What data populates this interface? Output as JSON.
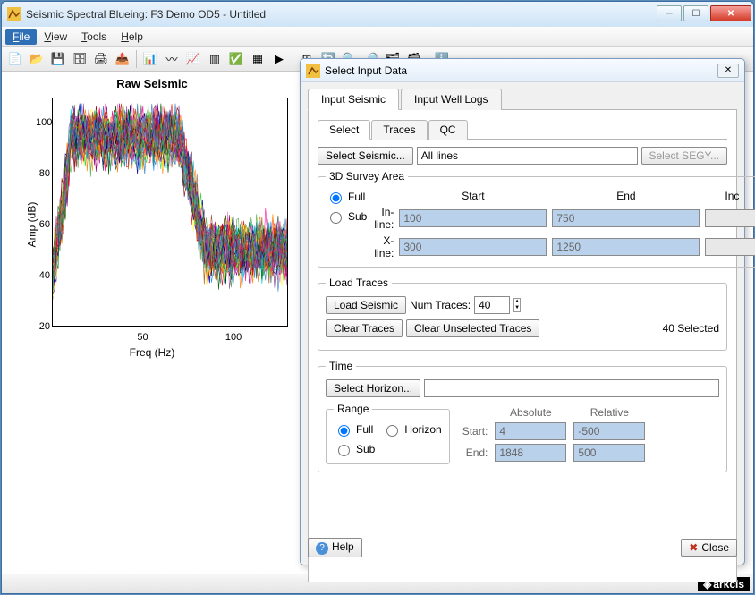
{
  "window": {
    "title": "Seismic Spectral Blueing: F3 Demo OD5 - Untitled"
  },
  "menu": {
    "file": "File",
    "view": "View",
    "tools": "Tools",
    "help": "Help"
  },
  "chart": {
    "title": "Raw Seismic",
    "xlabel": "Freq (Hz)",
    "ylabel": "Amp (dB)",
    "yticks": [
      20,
      40,
      60,
      80,
      100
    ],
    "ymin": 20,
    "ymax": 110,
    "xticks": [
      50,
      100
    ],
    "xmin": 0,
    "xmax": 130,
    "boxcolor": "#000000",
    "background": "#ffffff",
    "series_colors": [
      "#e41a1c",
      "#377eb8",
      "#4daf4a",
      "#984ea3",
      "#ff7f00",
      "#ffff33",
      "#a65628",
      "#f781bf",
      "#00ced1",
      "#1e90ff",
      "#ff1493",
      "#32cd32",
      "#8b008b",
      "#ff8c00",
      "#006400",
      "#8b0000",
      "#00008b",
      "#2f4f4f"
    ]
  },
  "dialog": {
    "title": "Select Input Data",
    "tabs": {
      "seismic": "Input Seismic",
      "well": "Input Well Logs"
    },
    "inner_tabs": {
      "select": "Select",
      "traces": "Traces",
      "qc": "QC"
    },
    "select_seismic_btn": "Select Seismic...",
    "lines_value": "All lines",
    "select_segy_btn": "Select SEGY...",
    "survey_legend": "3D Survey Area",
    "survey": {
      "full": "Full",
      "sub": "Sub",
      "hdr_start": "Start",
      "hdr_end": "End",
      "hdr_inc": "Inc",
      "inline_label": "In-line:",
      "inline_start": "100",
      "inline_end": "750",
      "inline_inc": "",
      "xline_label": "X-line:",
      "xline_start": "300",
      "xline_end": "1250",
      "xline_inc": ""
    },
    "load_legend": "Load Traces",
    "load_btn": "Load Seismic",
    "num_traces_label": "Num Traces:",
    "num_traces_value": "40",
    "clear_traces_btn": "Clear Traces",
    "clear_unselected_btn": "Clear Unselected Traces",
    "selected_text": "40 Selected",
    "time_legend": "Time",
    "select_horizon_btn": "Select Horizon...",
    "horizon_value": "",
    "range_legend": "Range",
    "range": {
      "full": "Full",
      "horizon": "Horizon",
      "sub": "Sub"
    },
    "abs_label": "Absolute",
    "rel_label": "Relative",
    "start_label": "Start:",
    "end_label": "End:",
    "abs_start": "4",
    "abs_end": "1848",
    "rel_start": "-500",
    "rel_end": "500",
    "help_btn": "Help",
    "close_btn": "Close"
  },
  "logo": "arkcls"
}
